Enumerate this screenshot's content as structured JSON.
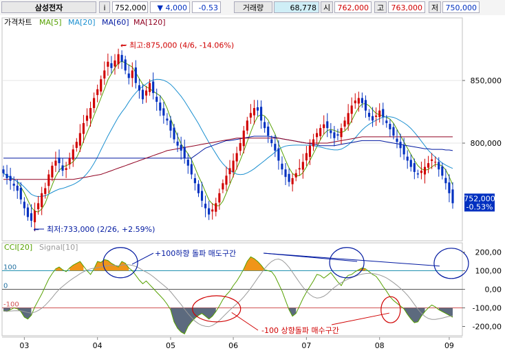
{
  "header": {
    "stock_name": "삼성전자",
    "info_icon": "i",
    "price": "752,000",
    "change_arrow": "▼",
    "change": "4,000",
    "change_pct": "-0.53",
    "volume_label": "거래량",
    "volume": "68,778",
    "open_label": "시",
    "open": "762,000",
    "high_label": "고",
    "high": "763,000",
    "low_label": "저",
    "low": "750,000"
  },
  "colors": {
    "up": "#d00000",
    "down": "#0030c0",
    "ma5": "#55a000",
    "ma20": "#1a8fd0",
    "ma60": "#0018a0",
    "ma120": "#900020",
    "cci": "#55a000",
    "signal": "#999999",
    "fill_pos": "#ee8a00",
    "fill_neg": "#4a5a70",
    "annotation": "#0018a0",
    "annotation2": "#d00000"
  },
  "chart_data": [
    {
      "type": "candlestick",
      "title": "가격차트",
      "legend": [
        "MA[5]",
        "MA[20]",
        "MA[60]",
        "MA[120]"
      ],
      "ylim": [
        722000,
        900000
      ],
      "y_ticks": [
        "850,000",
        "800,000"
      ],
      "y_tick_values": [
        850000,
        800000
      ],
      "x_ticks": [
        "03",
        "04",
        "05",
        "06",
        "07",
        "08",
        "09"
      ],
      "x_tick_index": [
        6,
        27,
        48,
        66,
        87,
        108,
        128
      ],
      "annotations": {
        "max_label": "최고:875,000 (4/6, -14.06%)",
        "min_label": "최저:733,000 (2/26, +2.59%)",
        "max_value": 875000,
        "max_index": 33,
        "min_value": 733000,
        "min_index": 8
      },
      "last_price_tag": [
        "752,000",
        "-0.53%"
      ],
      "last_price": 752000,
      "close": [
        776000,
        772000,
        770000,
        766000,
        762000,
        755000,
        748000,
        741000,
        738000,
        746000,
        752000,
        760000,
        764000,
        775000,
        782000,
        786000,
        784000,
        778000,
        780000,
        788000,
        795000,
        801000,
        808000,
        816000,
        822000,
        828000,
        836000,
        843000,
        851000,
        858000,
        865000,
        860000,
        866000,
        871000,
        865000,
        858000,
        852000,
        858000,
        848000,
        842000,
        835000,
        842000,
        848000,
        840000,
        833000,
        826000,
        822000,
        818000,
        810000,
        803000,
        798000,
        794000,
        788000,
        782000,
        775000,
        768000,
        760000,
        754000,
        748000,
        743000,
        747000,
        752000,
        760000,
        768000,
        774000,
        780000,
        786000,
        792000,
        800000,
        810000,
        818000,
        824000,
        828000,
        826000,
        818000,
        812000,
        806000,
        800000,
        794000,
        786000,
        779000,
        773000,
        769000,
        772000,
        776000,
        780000,
        785000,
        792000,
        798000,
        803000,
        808000,
        812000,
        815000,
        812000,
        808000,
        804000,
        806000,
        812000,
        818000,
        824000,
        830000,
        834000,
        836000,
        832000,
        826000,
        821000,
        818000,
        822000,
        826000,
        821000,
        816000,
        811000,
        806000,
        801000,
        796000,
        791000,
        786000,
        781000,
        777000,
        775000,
        778000,
        781000,
        784000,
        787000,
        785000,
        779000,
        774000,
        768000,
        760000,
        752000
      ],
      "series": [
        {
          "name": "MA[5]",
          "values": [
            776000,
            774000,
            772667,
            771000,
            769200,
            765000,
            760200,
            754400,
            748800,
            745600,
            745000,
            747400,
            752000,
            759400,
            766600,
            773400,
            778200,
            781000,
            782000,
            783200,
            785000,
            788400,
            794400,
            801600,
            808400,
            815000,
            822000,
            829000,
            836000,
            843200,
            850600,
            855400,
            860000,
            864000,
            865400,
            864000,
            862400,
            860800,
            856200,
            851600,
            847000,
            845000,
            843400,
            841400,
            839600,
            837800,
            833800,
            827800,
            819800,
            812400,
            805600,
            799400,
            795400,
            791400,
            786800,
            780400,
            773600,
            767800,
            761000,
            754600,
            751400,
            750000,
            750000,
            753600,
            760200,
            767000,
            773800,
            780000,
            786400,
            793600,
            801200,
            808800,
            816000,
            821200,
            822800,
            821600,
            818400,
            812800,
            807200,
            799600,
            793000,
            786400,
            780200,
            775800,
            773800,
            774000,
            776400,
            781000,
            786200,
            791600,
            797200,
            802600,
            807200,
            810000,
            811000,
            810200,
            809000,
            808400,
            809600,
            812800,
            818000,
            823600,
            828400,
            831200,
            831600,
            829800,
            826600,
            823800,
            822600,
            821600,
            820600,
            819200,
            816000,
            811000,
            806000,
            801000,
            796000,
            791000,
            786200,
            782000,
            779400,
            778400,
            779000,
            781000,
            783000,
            782800,
            781800,
            778600,
            773200,
            766600
          ]
        },
        {
          "name": "MA[20]",
          "values": [
            776000,
            774000,
            772667,
            771000,
            769200,
            767500,
            764857,
            761875,
            759111,
            757800,
            757273,
            757500,
            758000,
            759214,
            760733,
            762125,
            763235,
            763889,
            764789,
            765900,
            766900,
            768350,
            770250,
            772750,
            775750,
            779400,
            783800,
            788900,
            794550,
            800150,
            805800,
            810800,
            815900,
            820700,
            824850,
            828450,
            832850,
            836850,
            840250,
            843200,
            845200,
            847250,
            849250,
            850450,
            850950,
            850850,
            850150,
            848900,
            846850,
            844100,
            840750,
            837450,
            833550,
            829100,
            824600,
            820100,
            815500,
            810450,
            805450,
            800500,
            796100,
            791600,
            787200,
            783600,
            780650,
            778350,
            776550,
            775250,
            774850,
            775200,
            776200,
            777700,
            779500,
            781700,
            783850,
            786050,
            788350,
            790500,
            792800,
            795000,
            796600,
            797650,
            798100,
            798300,
            798400,
            798400,
            798350,
            798350,
            798250,
            797900,
            797400,
            796800,
            796150,
            795450,
            794950,
            794600,
            794600,
            795200,
            796650,
            798550,
            801100,
            804150,
            807500,
            810500,
            813000,
            815050,
            816700,
            818200,
            819600,
            820650,
            821050,
            821000,
            820550,
            819400,
            817850,
            816200,
            814250,
            811700,
            808650,
            805200,
            801550,
            797900,
            794250,
            791400,
            788850,
            786350,
            784150,
            782500,
            781000,
            779800
          ]
        },
        {
          "name": "MA[60]",
          "values": [
            788000,
            788000,
            788000,
            788000,
            788000,
            788000,
            788000,
            788000,
            788000,
            788000,
            788000,
            788000,
            788000,
            788000,
            788000,
            788000,
            788000,
            788000,
            788000,
            788000,
            788000,
            788000,
            788000,
            788000,
            788000,
            788000,
            788000,
            788000,
            788000,
            788000,
            788000,
            788000,
            788000,
            788000,
            788000,
            788000,
            788000,
            788000,
            788000,
            788000,
            788000,
            788000,
            788000,
            788000,
            788000,
            788000,
            788000,
            788000,
            788000,
            788000,
            788000,
            788000,
            788000,
            788000,
            788000,
            790000,
            792000,
            794000,
            796000,
            797000,
            798000,
            799000,
            800000,
            801000,
            802000,
            802000,
            802500,
            803000,
            803500,
            804000,
            804500,
            805000,
            805500,
            805500,
            805500,
            805500,
            805500,
            805000,
            804500,
            804000,
            803500,
            803000,
            802500,
            802000,
            801500,
            801000,
            800500,
            800000,
            799500,
            799000,
            798500,
            798000,
            798000,
            798000,
            798000,
            798000,
            798500,
            799000,
            799500,
            800000,
            800500,
            801000,
            801500,
            802000,
            802000,
            802000,
            802000,
            802000,
            802000,
            801500,
            801000,
            800500,
            800000,
            799500,
            799000,
            798500,
            798000,
            797500,
            797000,
            796500,
            796000,
            795500,
            795500,
            795000,
            795000,
            795000,
            795000,
            794500,
            794500,
            794000
          ]
        },
        {
          "name": "MA[120]",
          "values": [
            771000,
            771000,
            771000,
            771000,
            771000,
            771000,
            771000,
            771000,
            771000,
            771000,
            771000,
            771000,
            771000,
            771000,
            771000,
            771000,
            771000,
            771000,
            771000,
            771000,
            771000,
            771500,
            772000,
            772500,
            773000,
            773500,
            774000,
            774500,
            775000,
            776000,
            777000,
            778000,
            779000,
            780000,
            781000,
            782000,
            783000,
            784000,
            785000,
            786000,
            787000,
            788000,
            789000,
            790000,
            791000,
            792000,
            793000,
            794000,
            794500,
            795000,
            795500,
            796000,
            796500,
            797000,
            797500,
            798000,
            798500,
            799000,
            799500,
            800000,
            800500,
            801000,
            801500,
            802000,
            802500,
            803000,
            803500,
            804000,
            804000,
            804000,
            804000,
            804000,
            804000,
            804000,
            804000,
            804000,
            804000,
            804000,
            804000,
            804000,
            803500,
            803000,
            802500,
            802000,
            801500,
            801000,
            800500,
            800000,
            800000,
            800000,
            800000,
            800000,
            800000,
            800000,
            800500,
            801000,
            801500,
            802000,
            802500,
            803000,
            803500,
            804000,
            804500,
            805000,
            805000,
            805000,
            805000,
            805000,
            805000,
            805000,
            805000,
            805000,
            805000,
            805000,
            805000,
            805000,
            805000,
            805000,
            805000,
            805000,
            805000,
            805000,
            805000,
            805000,
            805000,
            805000,
            805000,
            805000,
            805000,
            805000
          ]
        }
      ]
    },
    {
      "type": "line",
      "title": "CCI[20]",
      "legend": [
        "CCI[20]",
        "Signal[10]"
      ],
      "ylim": [
        -250,
        250
      ],
      "y_ticks": [
        "200,00",
        "100,00",
        "0,00",
        "-100,00",
        "-200,00"
      ],
      "y_tick_values": [
        200,
        100,
        0,
        -100,
        -200
      ],
      "ref_lines": [
        100,
        0,
        -100
      ],
      "ref_labels": [
        "100",
        "0",
        "-100"
      ],
      "x_ticks": [
        "03",
        "04",
        "05",
        "06",
        "07",
        "08",
        "09"
      ],
      "x_tick_index": [
        6,
        27,
        48,
        66,
        87,
        108,
        128
      ],
      "annotations": {
        "sell_text": "+100하향 돌파 매도구간",
        "buy_text": "-100 상향돌파 매수구간"
      },
      "series": [
        {
          "name": "CCI[20]",
          "values": [
            -115,
            -120,
            -110,
            -100,
            -105,
            -120,
            -150,
            -160,
            -140,
            -95,
            -60,
            -25,
            15,
            55,
            85,
            110,
            120,
            105,
            95,
            115,
            130,
            140,
            150,
            125,
            100,
            80,
            110,
            150,
            145,
            160,
            155,
            140,
            130,
            120,
            150,
            140,
            115,
            100,
            75,
            50,
            30,
            45,
            25,
            5,
            -15,
            -35,
            -55,
            -80,
            -110,
            -175,
            -210,
            -230,
            -240,
            -200,
            -175,
            -155,
            -140,
            -130,
            -145,
            -160,
            -145,
            -120,
            -90,
            -55,
            -30,
            -10,
            20,
            45,
            75,
            110,
            150,
            175,
            165,
            150,
            130,
            105,
            100,
            95,
            70,
            30,
            -10,
            -60,
            -110,
            -145,
            -130,
            -90,
            -50,
            -15,
            15,
            45,
            80,
            75,
            60,
            75,
            90,
            65,
            40,
            20,
            55,
            75,
            80,
            95,
            105,
            115,
            110,
            95,
            80,
            70,
            45,
            15,
            -10,
            -40,
            -60,
            -75,
            -90,
            -105,
            -135,
            -160,
            -180,
            -175,
            -145,
            -120,
            -100,
            -85,
            -95,
            -110,
            -120,
            -130,
            -140,
            -150
          ]
        },
        {
          "name": "Signal[10]",
          "values": [
            -118,
            -118,
            -117,
            -116,
            -115,
            -116,
            -120,
            -125,
            -128,
            -123,
            -114,
            -102,
            -86,
            -66,
            -44,
            -21,
            0,
            16,
            31,
            46,
            59,
            71,
            84,
            94,
            104,
            110,
            114,
            117,
            120,
            124,
            127,
            128,
            128,
            127,
            130,
            133,
            132,
            129,
            123,
            114,
            102,
            93,
            82,
            68,
            53,
            37,
            22,
            6,
            -13,
            -36,
            -59,
            -82,
            -107,
            -131,
            -152,
            -171,
            -185,
            -194,
            -199,
            -201,
            -195,
            -183,
            -168,
            -149,
            -130,
            -112,
            -95,
            -78,
            -61,
            -41,
            -18,
            6,
            33,
            60,
            86,
            112,
            133,
            150,
            160,
            163,
            156,
            140,
            118,
            92,
            64,
            37,
            12,
            -10,
            -28,
            -41,
            -47,
            -45,
            -37,
            -24,
            -6,
            10,
            24,
            36,
            46,
            55,
            63,
            70,
            77,
            82,
            85,
            86,
            85,
            82,
            77,
            70,
            61,
            49,
            36,
            21,
            5,
            -12,
            -32,
            -55,
            -81,
            -107,
            -129,
            -146,
            -157,
            -162,
            -162,
            -159,
            -155,
            -150,
            -146,
            -143
          ]
        }
      ]
    }
  ]
}
